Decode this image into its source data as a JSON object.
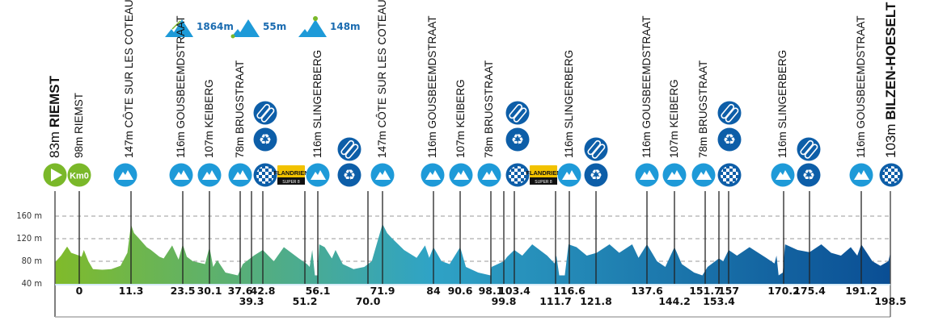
{
  "legend": [
    {
      "icon": "total-climb-icon",
      "value": "1864m"
    },
    {
      "icon": "lowest-point-icon",
      "value": "55m"
    },
    {
      "icon": "highest-point-icon",
      "value": "148m"
    }
  ],
  "top_labels": [
    {
      "elev": "83m",
      "name": "RIEMST",
      "big": true
    },
    {
      "elev": "98m",
      "name": "RIEMST"
    },
    {
      "elev": "147m",
      "name": "CÔTE SUR LES COTEAUX"
    },
    {
      "elev": "116m",
      "name": "GOUSBEEMDSTRAAT"
    },
    {
      "elev": "107m",
      "name": "KEIBERG"
    },
    {
      "elev": "78m",
      "name": "BRUGSTRAAT"
    },
    {
      "elev": "116m",
      "name": "SLINGERBERG"
    },
    {
      "elev": "147m",
      "name": "CÔTE SUR LES COTEAUX"
    },
    {
      "elev": "116m",
      "name": "GOUSBEEMDSTRAAT"
    },
    {
      "elev": "107m",
      "name": "KEIBERG"
    },
    {
      "elev": "78m",
      "name": "BRUGSTRAAT"
    },
    {
      "elev": "116m",
      "name": "SLINGERBERG"
    },
    {
      "elev": "116m",
      "name": "GOUSBEEMDSTRAAT"
    },
    {
      "elev": "107m",
      "name": "KEIBERG"
    },
    {
      "elev": "78m",
      "name": "BRUGSTRAAT"
    },
    {
      "elev": "116m",
      "name": "SLINGERBERG"
    },
    {
      "elev": "116m",
      "name": "GOUSBEEMDSTRAAT"
    },
    {
      "elev": "103m",
      "name": "BILZEN-HOESELT",
      "big": true
    }
  ],
  "icons": [
    {
      "type": "start",
      "name": "start-icon"
    },
    {
      "type": "km0",
      "name": "km0-icon",
      "text": "Km0"
    },
    {
      "type": "climb",
      "name": "climb-icon"
    },
    {
      "type": "climb",
      "name": "climb-icon"
    },
    {
      "type": "climb",
      "name": "climb-icon"
    },
    {
      "type": "climb",
      "name": "climb-icon"
    },
    {
      "type": "sprint",
      "name": "checkered-flag-icon"
    },
    {
      "type": "feed",
      "name": "feed-zone-icon"
    },
    {
      "type": "recycle",
      "name": "waste-zone-icon"
    },
    {
      "type": "flandrien",
      "name": "flandrien-sprint-icon",
      "text": "FLANDRIEN",
      "sub": "SUPER 8"
    },
    {
      "type": "climb",
      "name": "climb-icon"
    },
    {
      "type": "feed",
      "name": "feed-zone-icon"
    },
    {
      "type": "recycle",
      "name": "waste-zone-icon"
    },
    {
      "type": "climb",
      "name": "climb-icon"
    },
    {
      "type": "climb",
      "name": "climb-icon"
    },
    {
      "type": "climb",
      "name": "climb-icon"
    },
    {
      "type": "climb",
      "name": "climb-icon"
    },
    {
      "type": "sprint",
      "name": "checkered-flag-icon"
    },
    {
      "type": "feed",
      "name": "feed-zone-icon"
    },
    {
      "type": "recycle",
      "name": "waste-zone-icon"
    },
    {
      "type": "flandrien",
      "name": "flandrien-sprint-icon",
      "text": "FLANDRIEN",
      "sub": "SUPER 8"
    },
    {
      "type": "climb",
      "name": "climb-icon"
    },
    {
      "type": "feed",
      "name": "feed-zone-icon"
    },
    {
      "type": "recycle",
      "name": "waste-zone-icon"
    },
    {
      "type": "climb",
      "name": "climb-icon"
    },
    {
      "type": "climb",
      "name": "climb-icon"
    },
    {
      "type": "climb",
      "name": "climb-icon"
    },
    {
      "type": "sprint",
      "name": "checkered-flag-icon"
    },
    {
      "type": "feed",
      "name": "feed-zone-icon"
    },
    {
      "type": "recycle",
      "name": "waste-zone-icon"
    },
    {
      "type": "climb",
      "name": "climb-icon"
    },
    {
      "type": "feed",
      "name": "feed-zone-icon"
    },
    {
      "type": "recycle",
      "name": "waste-zone-icon"
    },
    {
      "type": "climb",
      "name": "climb-icon"
    },
    {
      "type": "finish",
      "name": "finish-flag-icon"
    }
  ],
  "colors": {
    "climb": "#1e9ad8",
    "dark": "#0d5ea8",
    "start": "#7ab829",
    "flandrien": "#f2c200",
    "profile_start": "#80bb2a",
    "profile_mid": "#2fa3c6",
    "profile_end": "#0a4e94"
  },
  "chart_data": {
    "type": "area",
    "xlabel": "",
    "ylabel": "",
    "ylim": [
      40,
      180
    ],
    "y_ticks": [
      "40 m",
      "80 m",
      "120 m",
      "160 m"
    ],
    "y_tick_values": [
      40,
      80,
      120,
      160
    ],
    "grid": "dashed horizontal at 80, 120, 160",
    "x_ticks": [
      0,
      11.3,
      23.5,
      30.1,
      37.6,
      39.3,
      42.8,
      51.2,
      56.1,
      70.0,
      71.9,
      84,
      90.6,
      98.1,
      99.8,
      103.4,
      111.7,
      116.6,
      121.8,
      137.6,
      144.2,
      151.7,
      153.4,
      157,
      170.2,
      175.4,
      191.2,
      198.5
    ],
    "x_tick_labels": [
      "0",
      "11.3",
      "23.5",
      "30.1",
      "37.6",
      "39.3",
      "42.8",
      "51.2",
      "56.1",
      "70.0",
      "71.9",
      "84",
      "90.6",
      "98.1",
      "99.8",
      "103.4",
      "111.7",
      "116.6",
      "121.8",
      "137.6",
      "144.2",
      "151.7",
      "153.4",
      "157",
      "170.2",
      "175.4",
      "191.2",
      "198.5"
    ],
    "profile_km": [
      -6,
      -4.5,
      -3,
      -2,
      0,
      0.5,
      1,
      2,
      3,
      5,
      7,
      9,
      10.5,
      11.3,
      12,
      13,
      15,
      16,
      18,
      19,
      21,
      22.5,
      23.5,
      24.5,
      26,
      29,
      30.1,
      31,
      32,
      34,
      37,
      38,
      40,
      42.8,
      45,
      47,
      50,
      52,
      53,
      54,
      55,
      56,
      56.5,
      58,
      60,
      61,
      63,
      66,
      69,
      70.5,
      71.9,
      73,
      74,
      77,
      80,
      82,
      83,
      84,
      86,
      88,
      90.6,
      92,
      95,
      98,
      98.2,
      99.8,
      101,
      103.4,
      105,
      107,
      110,
      111.5,
      112,
      113,
      115,
      116.3,
      118,
      120,
      122,
      126,
      129,
      133,
      135,
      137.6,
      140,
      142,
      144.2,
      146,
      149,
      151,
      152,
      153.4,
      155,
      157,
      159,
      162,
      166,
      168,
      168.5,
      169,
      170,
      170.5,
      173,
      175.4,
      179,
      182,
      185,
      188,
      190,
      191.2,
      194,
      196,
      198,
      198.5
    ],
    "profile_elev": [
      78,
      90,
      106,
      95,
      90,
      88,
      100,
      80,
      66,
      65,
      66,
      72,
      95,
      145,
      130,
      122,
      105,
      100,
      88,
      85,
      108,
      83,
      110,
      88,
      80,
      75,
      105,
      70,
      82,
      60,
      55,
      75,
      90,
      100,
      80,
      105,
      85,
      75,
      70,
      100,
      55,
      55,
      110,
      105,
      85,
      100,
      75,
      66,
      70,
      80,
      146,
      130,
      122,
      100,
      86,
      108,
      86,
      105,
      80,
      75,
      105,
      70,
      60,
      55,
      70,
      80,
      88,
      100,
      90,
      110,
      90,
      76,
      90,
      55,
      55,
      110,
      105,
      90,
      95,
      110,
      95,
      110,
      86,
      110,
      80,
      70,
      105,
      75,
      60,
      55,
      70,
      85,
      80,
      100,
      90,
      105,
      86,
      76,
      90,
      55,
      60,
      110,
      100,
      96,
      110,
      95,
      90,
      105,
      90,
      110,
      80,
      72,
      80,
      95
    ]
  }
}
